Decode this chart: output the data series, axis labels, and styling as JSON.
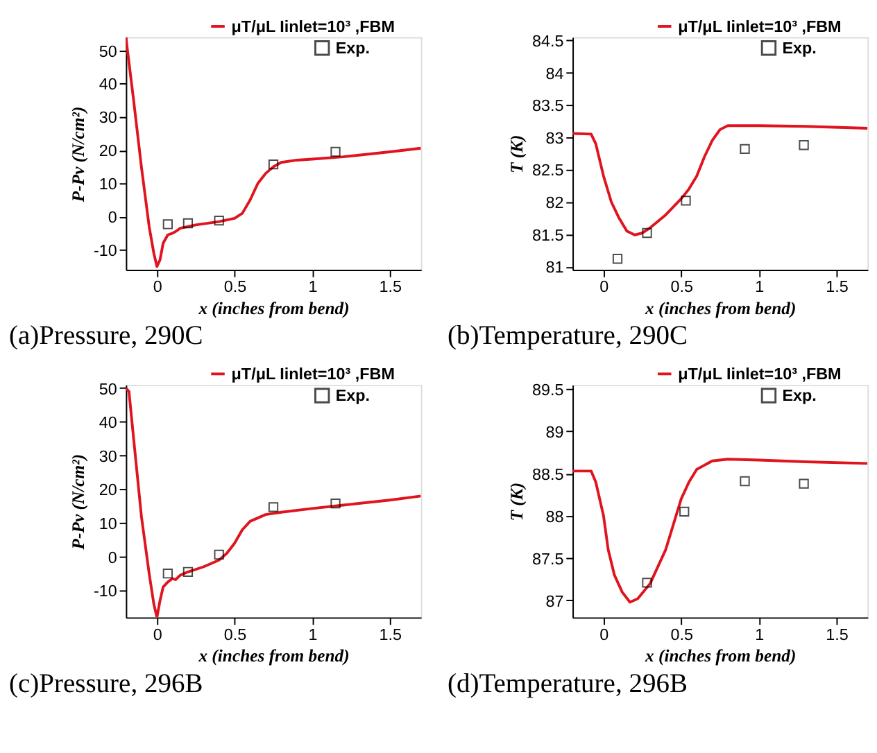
{
  "chart_data": [
    {
      "type": "line",
      "title": "(a)Pressure, 290C",
      "xlabel": "x (inches from bend)",
      "ylabel": "P-Pv (N/cm²)",
      "xlim": [
        -0.2,
        1.7
      ],
      "xticks": [
        0,
        0.5,
        1,
        1.5
      ],
      "ylim": [
        -16,
        54
      ],
      "yticks": [
        -10,
        0,
        10,
        20,
        30,
        40,
        50
      ],
      "legend": "top right",
      "grid": false,
      "series": [
        {
          "name": "μT/μL Iinlet=10³ ,FBM",
          "marker": "none",
          "color": "#e0141e",
          "x": [
            -0.2,
            -0.15,
            -0.1,
            -0.05,
            -0.02,
            0,
            0.02,
            0.04,
            0.07,
            0.1,
            0.12,
            0.15,
            0.25,
            0.4,
            0.5,
            0.55,
            0.6,
            0.65,
            0.7,
            0.75,
            0.8,
            0.9,
            1.0,
            1.2,
            1.5,
            1.7
          ],
          "values": [
            54,
            35,
            15,
            -3,
            -11,
            -15,
            -13,
            -8,
            -5.5,
            -5,
            -4.5,
            -3.5,
            -2.5,
            -1.5,
            -0.5,
            1,
            5,
            10,
            13,
            15,
            16.3,
            17,
            17.3,
            18,
            19.5,
            20.6
          ]
        },
        {
          "name": "Exp.",
          "type": "scatter",
          "marker": "square",
          "color": "#000000",
          "x": [
            0.07,
            0.2,
            0.4,
            0.75,
            1.15
          ],
          "values": [
            -2.3,
            -2,
            -1.2,
            15.7,
            19.5
          ]
        }
      ]
    },
    {
      "type": "line",
      "title": "(b)Temperature, 290C",
      "xlabel": "x (inches from bend)",
      "ylabel": "T (K)",
      "xlim": [
        -0.2,
        1.7
      ],
      "xticks": [
        0,
        0.5,
        1,
        1.5
      ],
      "ylim": [
        80.95,
        84.55
      ],
      "yticks": [
        81,
        81.5,
        82,
        82.5,
        83,
        83.5,
        84,
        84.5
      ],
      "legend": "top right",
      "grid": false,
      "series": [
        {
          "name": "μT/μL Iinlet=10³ ,FBM",
          "marker": "none",
          "color": "#e0141e",
          "x": [
            -0.2,
            -0.08,
            -0.05,
            0,
            0.05,
            0.1,
            0.15,
            0.2,
            0.25,
            0.3,
            0.4,
            0.5,
            0.55,
            0.6,
            0.65,
            0.7,
            0.75,
            0.8,
            1.0,
            1.3,
            1.7
          ],
          "values": [
            83.06,
            83.05,
            82.9,
            82.4,
            82,
            81.75,
            81.55,
            81.49,
            81.52,
            81.6,
            81.8,
            82.05,
            82.2,
            82.4,
            82.7,
            82.95,
            83.12,
            83.18,
            83.18,
            83.17,
            83.14
          ]
        },
        {
          "name": "Exp.",
          "type": "scatter",
          "marker": "square",
          "color": "#000000",
          "x": [
            0.09,
            0.28,
            0.53,
            0.91,
            1.29
          ],
          "values": [
            81.12,
            81.52,
            82.02,
            82.82,
            82.88
          ]
        }
      ]
    },
    {
      "type": "line",
      "title": "(c)Pressure, 296B",
      "xlabel": "x (inches from bend)",
      "ylabel": "P-Pv (N/cm²)",
      "xlim": [
        -0.2,
        1.7
      ],
      "xticks": [
        0,
        0.5,
        1,
        1.5
      ],
      "ylim": [
        -18,
        51
      ],
      "yticks": [
        -10,
        0,
        10,
        20,
        30,
        40,
        50
      ],
      "legend": "top right",
      "grid": false,
      "series": [
        {
          "name": "μT/μL Iinlet=10³ ,FBM",
          "marker": "none",
          "color": "#e0141e",
          "x": [
            -0.2,
            -0.18,
            -0.15,
            -0.1,
            -0.05,
            -0.02,
            0,
            0.02,
            0.04,
            0.07,
            0.1,
            0.12,
            0.15,
            0.2,
            0.3,
            0.4,
            0.45,
            0.5,
            0.55,
            0.6,
            0.7,
            0.8,
            1.0,
            1.2,
            1.5,
            1.7
          ],
          "values": [
            50,
            49,
            35,
            12,
            -5,
            -14,
            -18,
            -13,
            -9,
            -7.5,
            -6.5,
            -6.8,
            -5.5,
            -4.5,
            -3,
            -1,
            1,
            4,
            8,
            10.5,
            12.5,
            13.2,
            14.3,
            15.3,
            16.8,
            18
          ]
        },
        {
          "name": "Exp.",
          "type": "scatter",
          "marker": "square",
          "color": "#000000",
          "x": [
            0.07,
            0.2,
            0.4,
            0.75,
            1.15
          ],
          "values": [
            -5,
            -4.5,
            0.6,
            14.7,
            15.8
          ]
        }
      ]
    },
    {
      "type": "line",
      "title": "(d)Temperature, 296B",
      "xlabel": "x (inches from bend)",
      "ylabel": "T (K)",
      "xlim": [
        -0.2,
        1.7
      ],
      "xticks": [
        0,
        0.5,
        1,
        1.5
      ],
      "ylim": [
        86.8,
        89.55
      ],
      "yticks": [
        87,
        87.5,
        88,
        88.5,
        89,
        89.5
      ],
      "legend": "top right",
      "grid": false,
      "series": [
        {
          "name": "μT/μL Iinlet=10³ ,FBM",
          "marker": "none",
          "color": "#e0141e",
          "x": [
            -0.2,
            -0.08,
            -0.05,
            0,
            0.03,
            0.07,
            0.12,
            0.17,
            0.22,
            0.3,
            0.4,
            0.5,
            0.55,
            0.6,
            0.7,
            0.8,
            1.0,
            1.3,
            1.7
          ],
          "values": [
            88.53,
            88.53,
            88.4,
            88.0,
            87.6,
            87.3,
            87.1,
            86.98,
            87.02,
            87.2,
            87.6,
            88.2,
            88.4,
            88.55,
            88.65,
            88.67,
            88.66,
            88.64,
            88.62
          ]
        },
        {
          "name": "Exp.",
          "type": "scatter",
          "marker": "square",
          "color": "#000000",
          "x": [
            0.28,
            0.52,
            0.91,
            1.29
          ],
          "values": [
            87.21,
            88.05,
            88.41,
            88.38
          ]
        }
      ]
    }
  ]
}
